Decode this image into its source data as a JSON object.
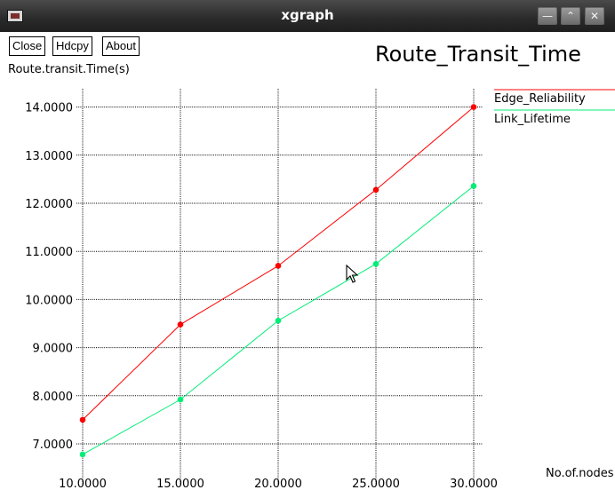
{
  "window": {
    "title": "xgraph",
    "controls": [
      "minimize-icon",
      "maximize-icon",
      "close-icon"
    ]
  },
  "toolbar": {
    "close_label": "Close",
    "hdcpy_label": "Hdcpy",
    "about_label": "About"
  },
  "graph": {
    "title": "Route_Transit_Time"
  },
  "chart_data": {
    "type": "line",
    "title": "Route_Transit_Time",
    "ylabel": "Route.transit.Time(s)",
    "xlabel": "No.of.nodes",
    "x": [
      10,
      15,
      20,
      25,
      30
    ],
    "x_tick_labels": [
      "10.0000",
      "15.0000",
      "20.0000",
      "25.0000",
      "30.0000"
    ],
    "y_tick_values": [
      7,
      8,
      9,
      10,
      11,
      12,
      13,
      14
    ],
    "y_tick_labels": [
      "7.0000",
      "8.0000",
      "9.0000",
      "10.0000",
      "11.0000",
      "12.0000",
      "13.0000",
      "14.0000"
    ],
    "xlim": [
      10,
      30
    ],
    "ylim": [
      6.6,
      14.0
    ],
    "grid": true,
    "legend": "top-right",
    "series": [
      {
        "name": "Edge_Reliability",
        "color": "#ff0000",
        "values": [
          7.5,
          9.48,
          10.7,
          12.28,
          14.0
        ]
      },
      {
        "name": "Link_Lifetime",
        "color": "#00ee77",
        "values": [
          6.78,
          7.92,
          9.56,
          10.74,
          12.36
        ]
      }
    ]
  }
}
